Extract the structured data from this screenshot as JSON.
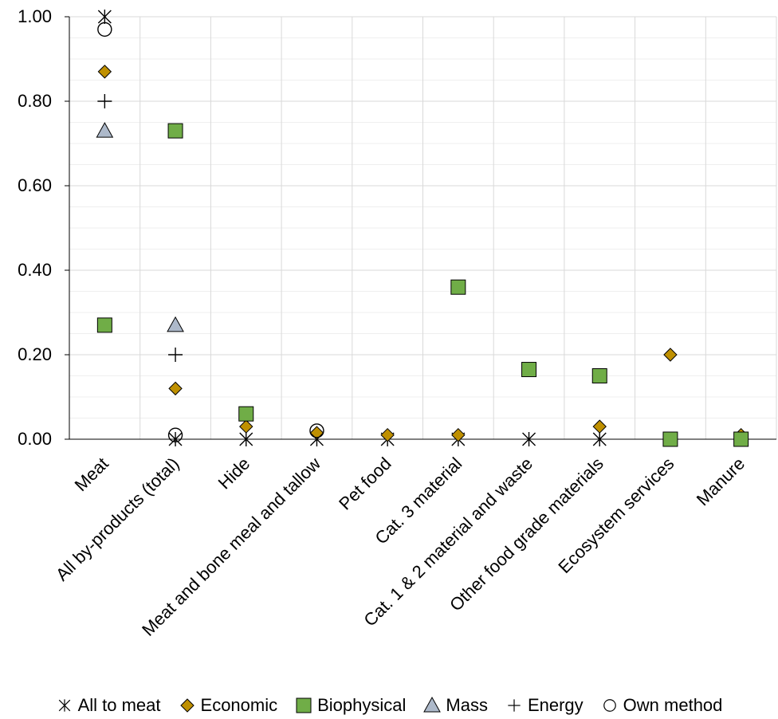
{
  "chart_data": {
    "type": "scatter",
    "categories": [
      "Meat",
      "All by-products (total)",
      "Hide",
      "Meat and bone meal and tallow",
      "Pet food",
      "Cat. 3 material",
      "Cat. 1 & 2 material and waste",
      "Other food grade materials",
      "Ecosystem services",
      "Manure"
    ],
    "ylim": [
      0,
      1
    ],
    "y_ticks": [
      "0.00",
      "0.20",
      "0.40",
      "0.60",
      "0.80",
      "1.00"
    ],
    "grid": true,
    "legend_position": "bottom",
    "series": [
      {
        "name": "All to meat",
        "marker": "asterisk",
        "color": "#000000",
        "values": [
          1.0,
          0.0,
          0.0,
          0.0,
          0.0,
          0.0,
          0.0,
          0.0,
          null,
          null
        ]
      },
      {
        "name": "Economic",
        "marker": "diamond",
        "color": "#BF9000",
        "values": [
          0.87,
          0.12,
          0.03,
          0.015,
          0.01,
          0.01,
          null,
          0.03,
          0.2,
          0.01
        ]
      },
      {
        "name": "Biophysical",
        "marker": "square",
        "color": "#70AD47",
        "values": [
          0.27,
          0.73,
          0.06,
          null,
          null,
          0.36,
          0.165,
          0.15,
          0.0,
          0.0
        ]
      },
      {
        "name": "Mass",
        "marker": "triangle",
        "color": "#ADB9CA",
        "values": [
          0.73,
          0.27,
          null,
          null,
          null,
          null,
          null,
          null,
          null,
          null
        ]
      },
      {
        "name": "Energy",
        "marker": "plus",
        "color": "#000000",
        "values": [
          0.8,
          0.2,
          null,
          null,
          null,
          null,
          null,
          null,
          null,
          null
        ]
      },
      {
        "name": "Own method",
        "marker": "circle",
        "color": "#000000",
        "values": [
          0.97,
          0.01,
          null,
          0.02,
          null,
          null,
          null,
          null,
          null,
          null
        ]
      }
    ]
  }
}
